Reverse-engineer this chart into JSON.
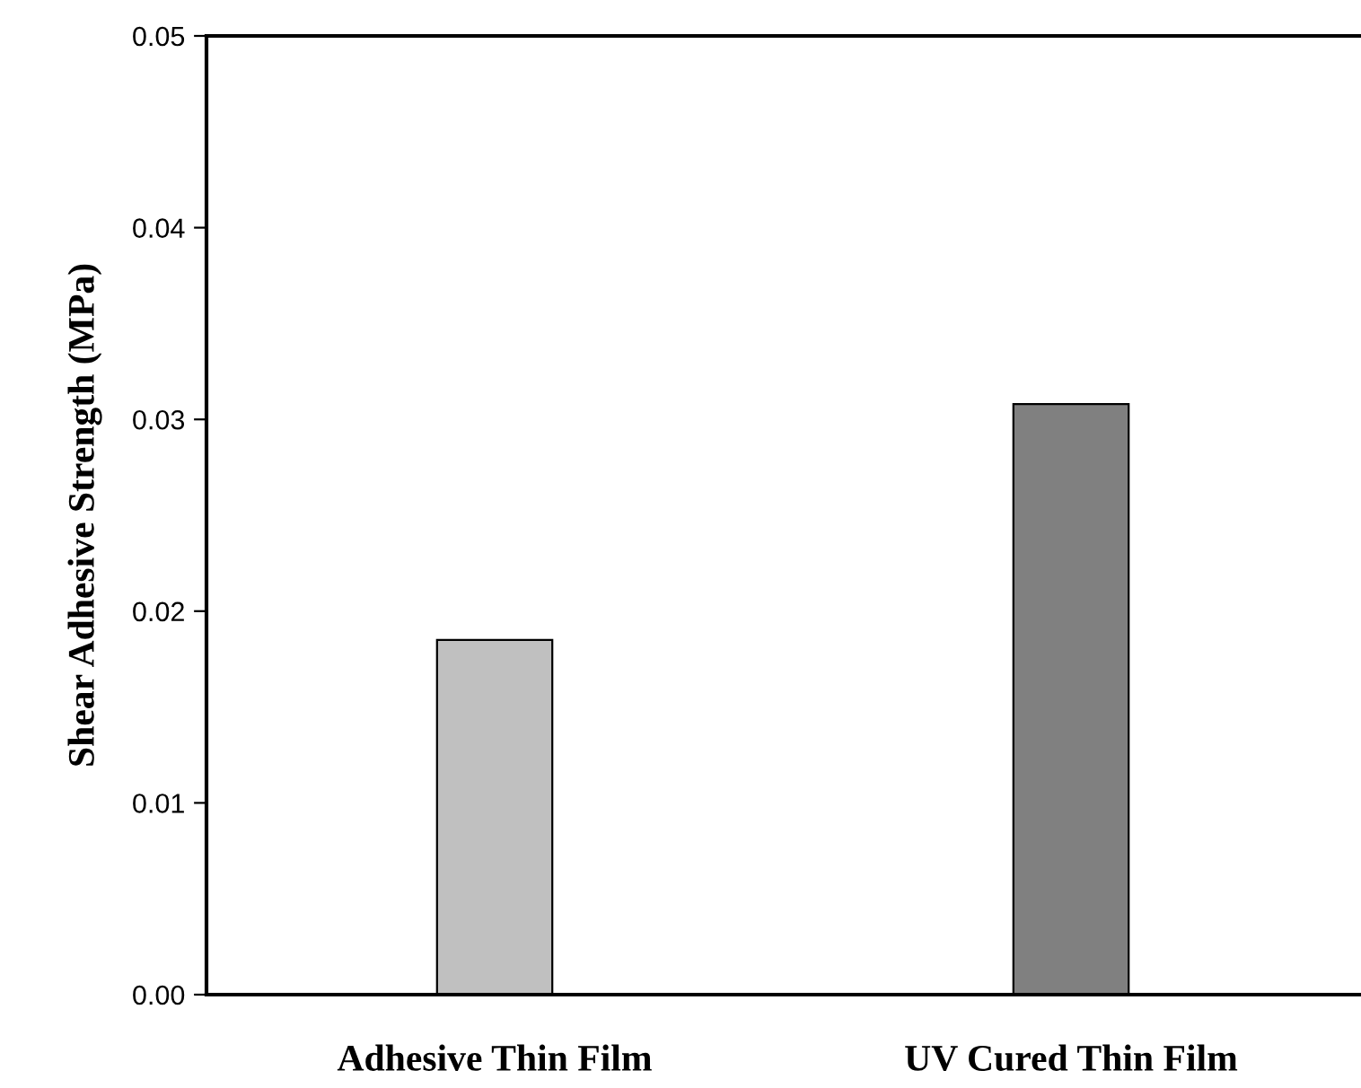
{
  "chart_data": {
    "type": "bar",
    "ylabel": "Shear Adhesive Strength (MPa)",
    "categories": [
      "Adhesive Thin Film",
      "UV Cured Thin Film"
    ],
    "values": [
      0.0185,
      0.0308
    ],
    "colors": [
      "#c0c0c0",
      "#808080"
    ],
    "ylim": [
      0,
      0.05
    ],
    "yticks": [
      {
        "value": 0,
        "label": "0.00"
      },
      0.01,
      0.02,
      0.03,
      0.04,
      0.05
    ],
    "grid": false
  }
}
